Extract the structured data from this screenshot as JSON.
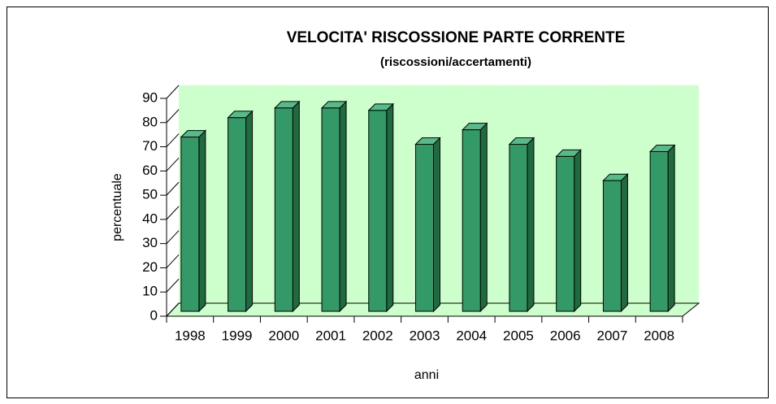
{
  "chart_data": {
    "type": "bar3d",
    "title": "VELOCITA' RISCOSSIONE PARTE CORRENTE",
    "subtitle": "(riscossioni/accertamenti)",
    "x_label": "anni",
    "y_label": "percentuale",
    "categories": [
      "1998",
      "1999",
      "2000",
      "2001",
      "2002",
      "2003",
      "2004",
      "2005",
      "2006",
      "2007",
      "2008"
    ],
    "values": [
      72,
      80,
      84,
      84,
      83,
      69,
      75,
      69,
      64,
      54,
      66
    ],
    "color": "#339966",
    "ylim": [
      0,
      90
    ],
    "yticks": [
      0,
      10,
      20,
      30,
      40,
      50,
      60,
      70,
      80,
      90
    ],
    "wall_color": "#ccffcc"
  }
}
